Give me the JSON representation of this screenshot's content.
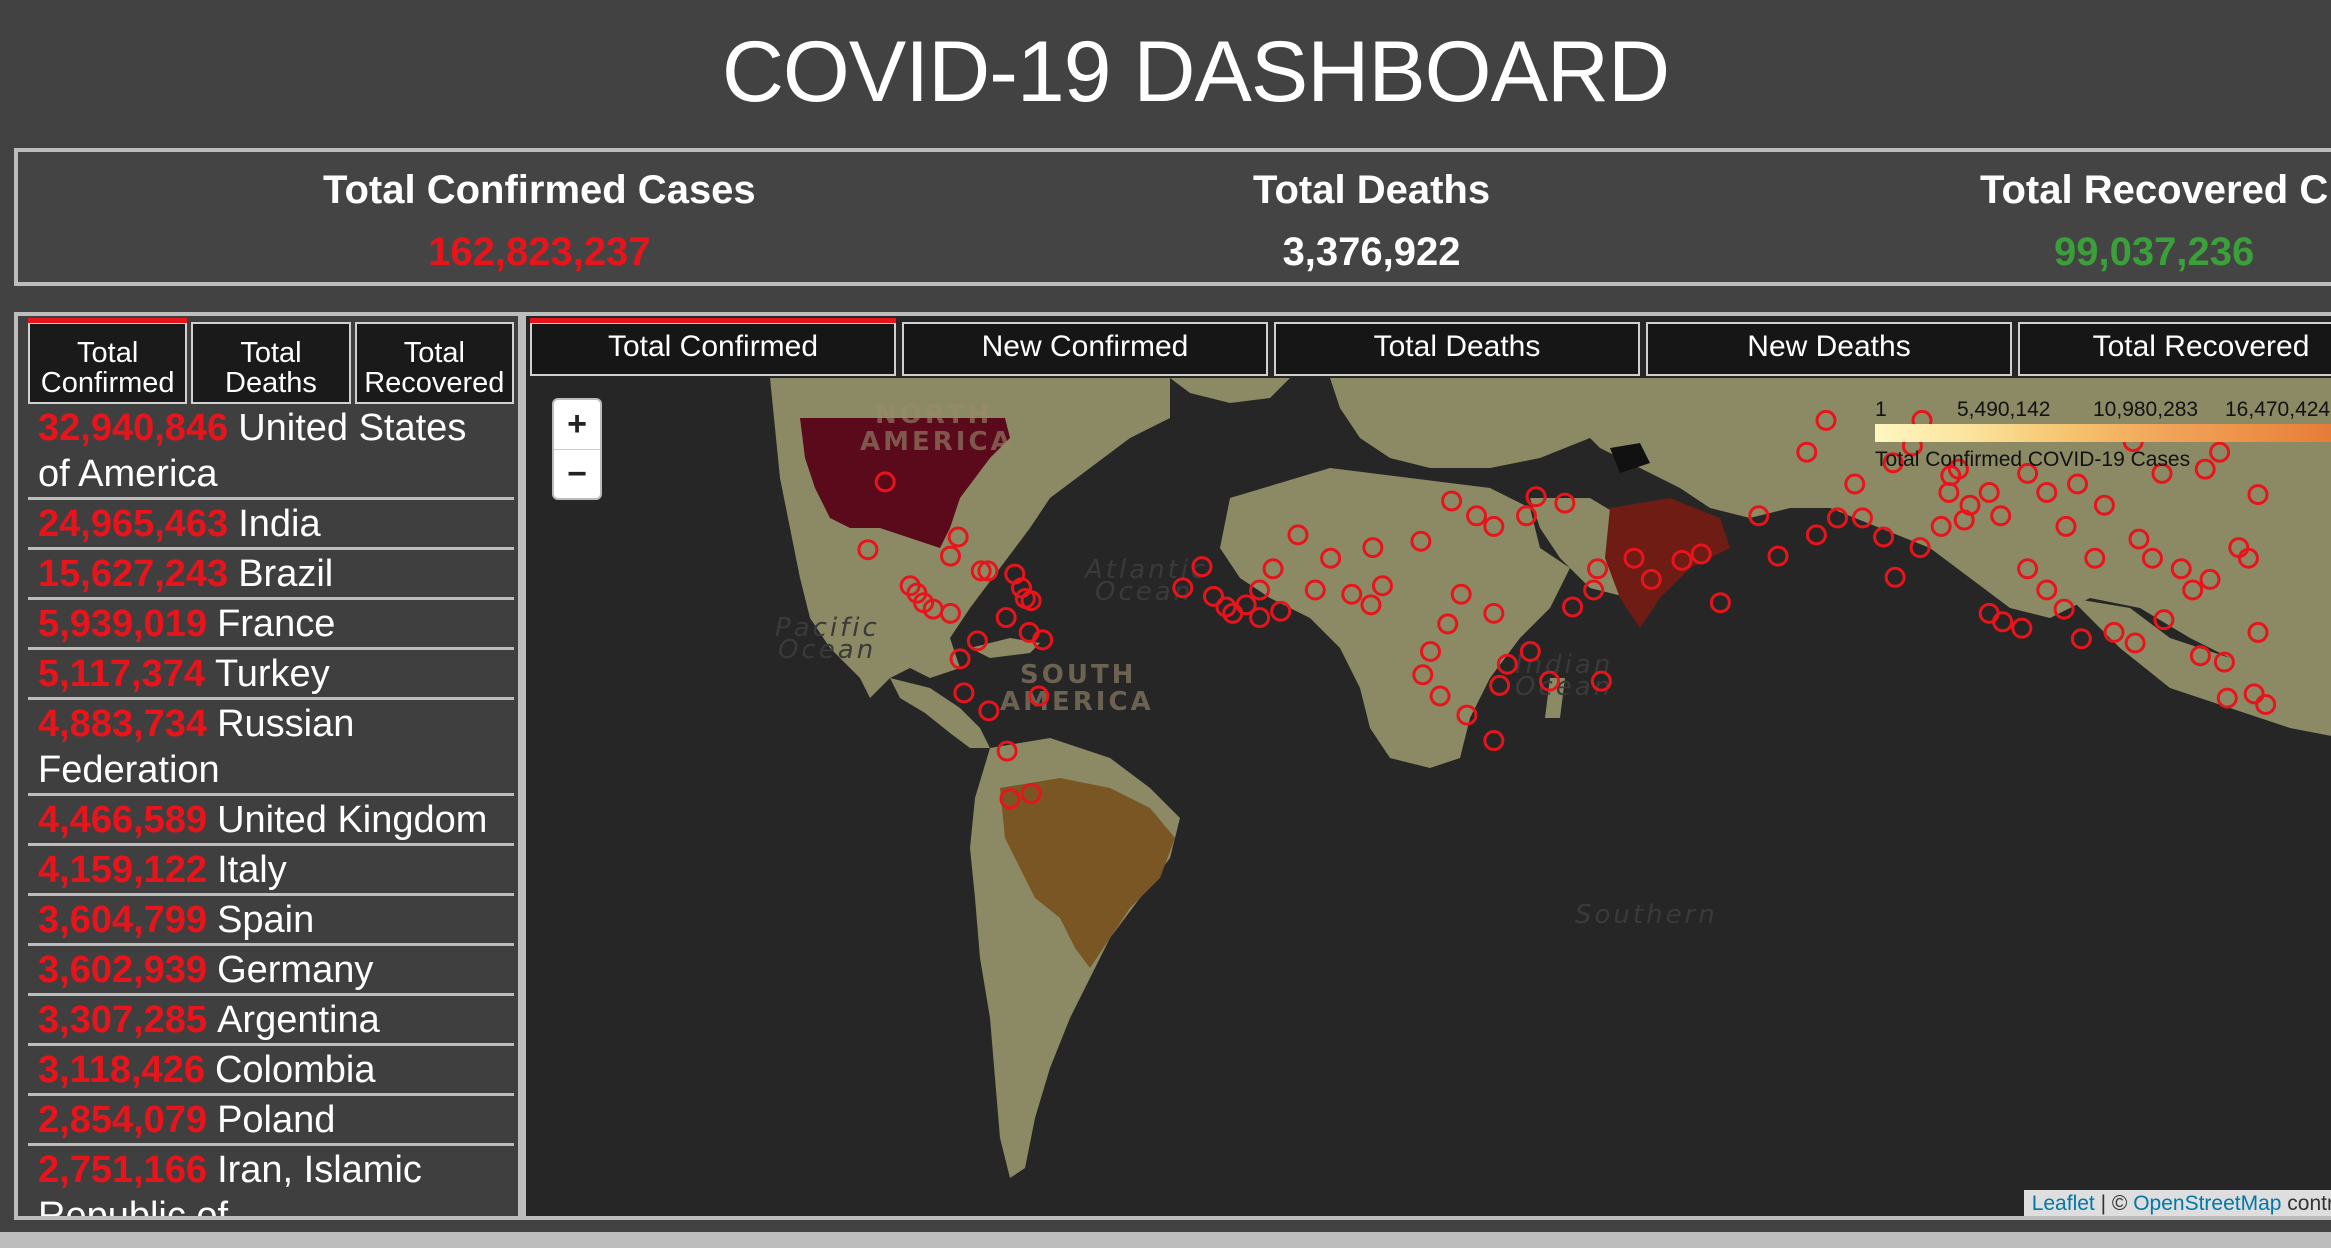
{
  "title": "COVID-19 DASHBOARD",
  "stats": {
    "confirmed_label": "Total Confirmed Cases",
    "confirmed_value": "162,823,237",
    "deaths_label": "Total Deaths",
    "deaths_value": "3,376,922",
    "recovered_label": "Total Recovered C",
    "recovered_value": "99,037,236"
  },
  "left_tabs": [
    {
      "line1": "Total",
      "line2": "Confirmed"
    },
    {
      "line1": "Total",
      "line2": "Deaths"
    },
    {
      "line1": "Total",
      "line2": "Recovered"
    }
  ],
  "country_list": [
    {
      "value": "32,940,846",
      "name": "United States of America"
    },
    {
      "value": "24,965,463",
      "name": "India"
    },
    {
      "value": "15,627,243",
      "name": "Brazil"
    },
    {
      "value": "5,939,019",
      "name": "France"
    },
    {
      "value": "5,117,374",
      "name": "Turkey"
    },
    {
      "value": "4,883,734",
      "name": "Russian Federation"
    },
    {
      "value": "4,466,589",
      "name": "United Kingdom"
    },
    {
      "value": "4,159,122",
      "name": "Italy"
    },
    {
      "value": "3,604,799",
      "name": "Spain"
    },
    {
      "value": "3,602,939",
      "name": "Germany"
    },
    {
      "value": "3,307,285",
      "name": "Argentina"
    },
    {
      "value": "3,118,426",
      "name": "Colombia"
    },
    {
      "value": "2,854,079",
      "name": "Poland"
    },
    {
      "value": "2,751,166",
      "name": "Iran, Islamic Republic of"
    }
  ],
  "map_tabs": [
    "Total Confirmed",
    "New Confirmed",
    "Total Deaths",
    "New Deaths",
    "Total Recovered"
  ],
  "map": {
    "zoom_in": "+",
    "zoom_out": "−",
    "legend_ticks": [
      "1",
      "5,490,142",
      "10,980,283",
      "16,470,424"
    ],
    "legend_title": "Total Confirmed COVID-19 Cases",
    "attrib_leaflet": "Leaflet",
    "attrib_sep": " | © ",
    "attrib_osm": "OpenStreetMap",
    "attrib_tail": " contr",
    "ocean_labels": {
      "atlantic1": "Atlantic",
      "atlantic2": "Ocean",
      "pacific1": "Pacific",
      "pacific2": "Ocean",
      "indian1": "Indian",
      "indian2": "Ocean",
      "southern": "Southern"
    },
    "continent_labels": {
      "na1": "NORTH",
      "na2": "AMERICA",
      "sa1": "SOUTH",
      "sa2": "AMERICA"
    },
    "colors": {
      "land": "#8c8a64",
      "usa": "#5a0a1a",
      "india": "#6e1c14",
      "brazil": "#7a5624",
      "marker": "#e8141c"
    }
  }
}
